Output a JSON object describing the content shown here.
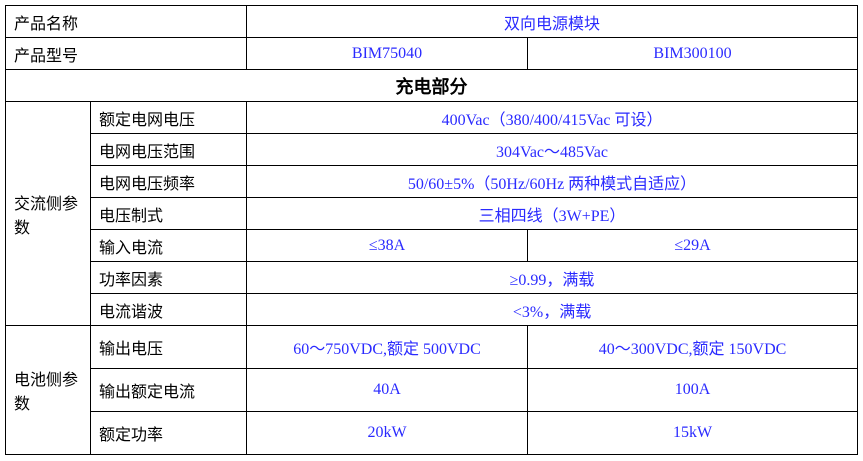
{
  "colors": {
    "value_text": "#2a2aff",
    "label_text": "#000000"
  },
  "rows": {
    "name": {
      "label": "产品名称",
      "value": "双向电源模块"
    },
    "model": {
      "label": "产品型号",
      "a": "BIM75040",
      "b": "BIM300100"
    },
    "section": "充电部分",
    "ac_group": "交流侧参数",
    "ac": [
      {
        "label": "额定电网电压",
        "value": "400Vac（380/400/415Vac 可设）"
      },
      {
        "label": "电网电压范围",
        "value": "304Vac～485Vac"
      },
      {
        "label": "电网电压频率",
        "value": "50/60±5%（50Hz/60Hz 两种模式自适应）"
      },
      {
        "label": "电压制式",
        "value": "三相四线（3W+PE）"
      },
      {
        "label": "输入电流",
        "a": "≤38A",
        "b": "≤29A"
      },
      {
        "label": "功率因素",
        "value": "≥0.99，满载"
      },
      {
        "label": "电流谐波",
        "value": "<3%，满载"
      }
    ],
    "dc_group": "电池侧参数",
    "dc": [
      {
        "label": "输出电压",
        "a": "60～750VDC,额定 500VDC",
        "b": "40～300VDC,额定 150VDC"
      },
      {
        "label": "输出额定电流",
        "a": "40A",
        "b": "100A"
      },
      {
        "label": "额定功率",
        "a": "20kW",
        "b": "15kW"
      }
    ]
  }
}
